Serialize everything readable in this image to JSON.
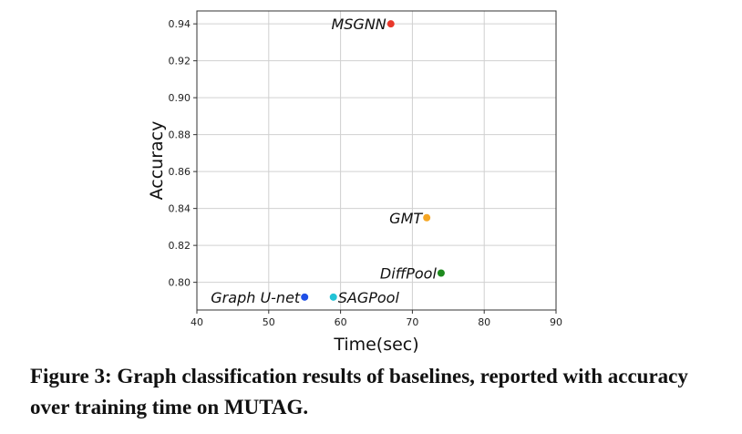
{
  "chart_data": {
    "type": "scatter",
    "xlabel": "Time(sec)",
    "ylabel": "Accuracy",
    "xlim": [
      40,
      90
    ],
    "ylim": [
      0.785,
      0.947
    ],
    "xticks": [
      40,
      50,
      60,
      70,
      80,
      90
    ],
    "yticks": [
      0.8,
      0.82,
      0.84,
      0.86,
      0.88,
      0.9,
      0.92,
      0.94
    ],
    "grid": true,
    "points": [
      {
        "label": "MSGNN",
        "x": 67,
        "y": 0.94,
        "color": "#e8382b"
      },
      {
        "label": "GMT",
        "x": 72,
        "y": 0.835,
        "color": "#f5a623"
      },
      {
        "label": "DiffPool",
        "x": 74,
        "y": 0.805,
        "color": "#1e8a1e"
      },
      {
        "label": "SAGPool",
        "x": 59,
        "y": 0.792,
        "color": "#22c3d6"
      },
      {
        "label": "Graph U-net",
        "x": 55,
        "y": 0.792,
        "color": "#1f4fe6"
      }
    ]
  },
  "caption": "Figure 3: Graph classification results of baselines, reported with accuracy over training time on MUTAG."
}
